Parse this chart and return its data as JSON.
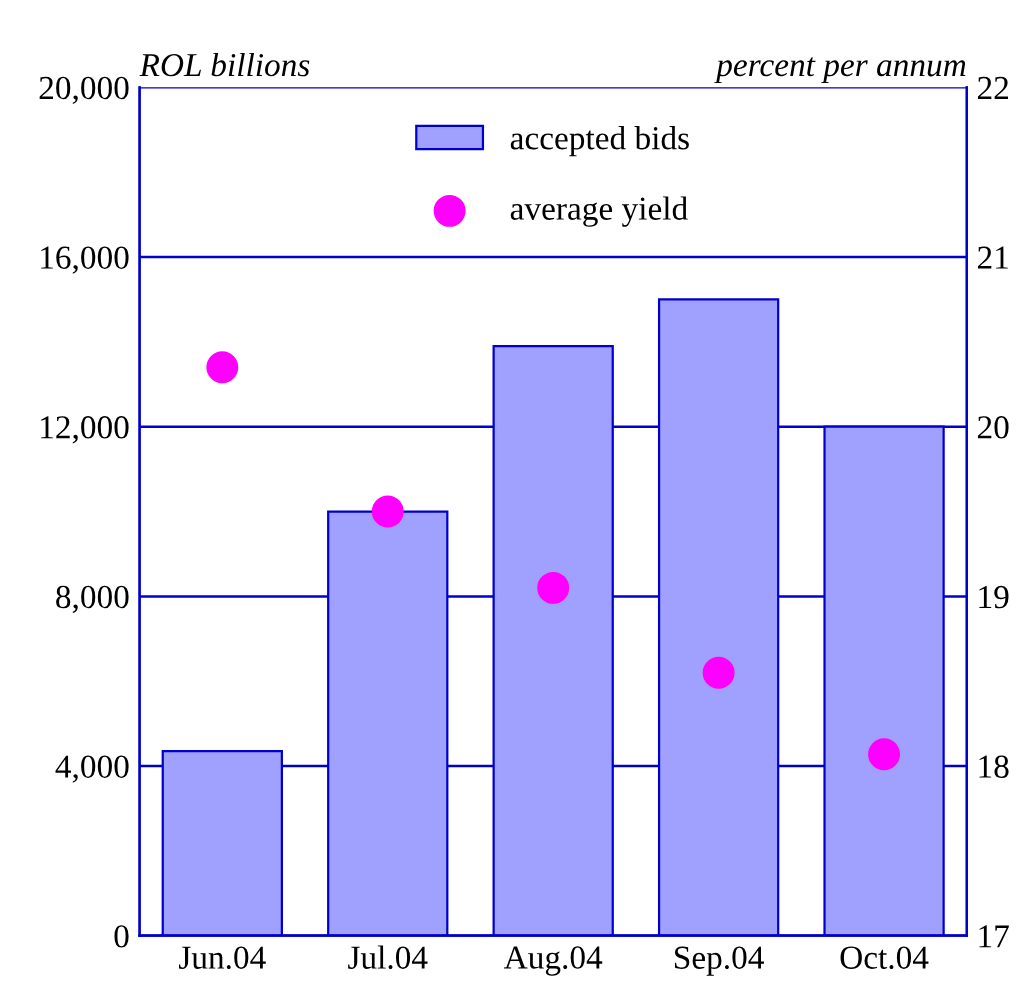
{
  "chart_data": {
    "type": "bar",
    "ylabel": "ROL billions",
    "y2label": "percent per annum",
    "categories": [
      "Jun.04",
      "Jul.04",
      "Aug.04",
      "Sep.04",
      "Oct.04"
    ],
    "series": [
      {
        "name": "accepted bids",
        "color": "#a0a0ff",
        "values": [
          4350,
          10000,
          13900,
          15000,
          12000
        ]
      },
      {
        "name": "average yield",
        "type": "scatter",
        "axis": "y2",
        "color": "#ff00ff",
        "values": [
          20.35,
          19.5,
          19.05,
          18.55,
          18.07
        ]
      }
    ],
    "ylim": [
      0,
      20000
    ],
    "yticks": [
      {
        "value": 0,
        "label": "0"
      },
      {
        "value": 4000,
        "label": "4,000"
      },
      {
        "value": 8000,
        "label": "8,000"
      },
      {
        "value": 12000,
        "label": "12,000"
      },
      {
        "value": 16000,
        "label": "16,000"
      },
      {
        "value": 20000,
        "label": "20,000"
      }
    ],
    "y2lim": [
      17,
      22
    ],
    "y2ticks": [
      17,
      18,
      19,
      20,
      21,
      22
    ],
    "grid": "y",
    "legend": "top",
    "marker": "circle"
  }
}
